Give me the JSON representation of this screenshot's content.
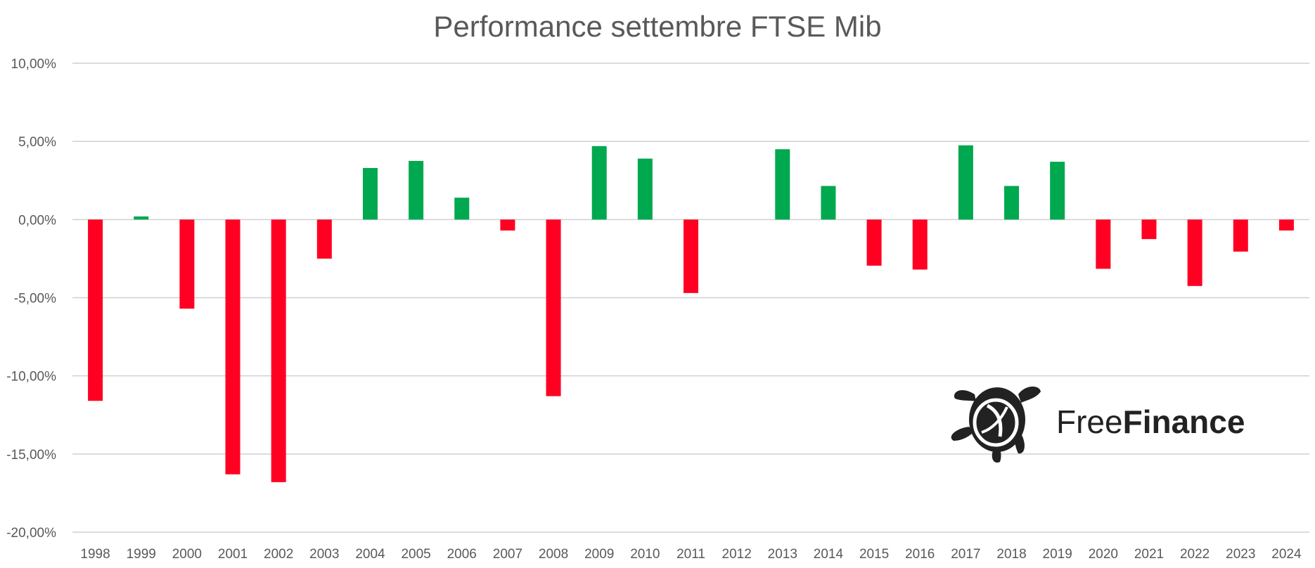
{
  "chart_data": {
    "type": "bar",
    "title": "Performance settembre FTSE Mib",
    "xlabel": "",
    "ylabel": "",
    "categories": [
      "1998",
      "1999",
      "2000",
      "2001",
      "2002",
      "2003",
      "2004",
      "2005",
      "2006",
      "2007",
      "2008",
      "2009",
      "2010",
      "2011",
      "2012",
      "2013",
      "2014",
      "2015",
      "2016",
      "2017",
      "2018",
      "2019",
      "2020",
      "2021",
      "2022",
      "2023",
      "2024"
    ],
    "values": [
      -11.6,
      0.2,
      -5.7,
      -16.3,
      -16.8,
      -2.5,
      3.3,
      3.75,
      1.4,
      -0.7,
      -11.3,
      4.7,
      3.9,
      -4.7,
      0,
      4.5,
      2.15,
      -2.95,
      -3.2,
      4.75,
      2.15,
      3.7,
      -3.15,
      -1.25,
      -4.25,
      -2.05,
      -0.7
    ],
    "ylim": [
      -20,
      10
    ],
    "yticks": [
      10,
      5,
      0,
      -5,
      -10,
      -15,
      -20
    ],
    "ytick_labels": [
      "10,00%",
      "5,00%",
      "0,00%",
      "-5,00%",
      "-10,00%",
      "-15,00%",
      "-20,00%"
    ],
    "grid": true,
    "colors": {
      "positive": "#00a84f",
      "negative": "#ff0022",
      "grid": "#d0d0d0",
      "text": "#595959"
    }
  },
  "logo": {
    "name_regular": "Free",
    "name_bold": "Finance",
    "icon": "turtle-icon"
  }
}
